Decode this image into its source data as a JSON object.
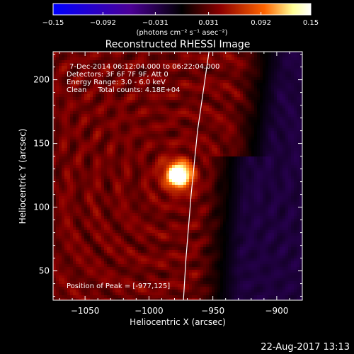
{
  "chart_data": {
    "type": "heatmap",
    "title": "Reconstructed RHESSI Image",
    "xlabel": "Heliocentric X (arcsec)",
    "ylabel": "Heliocentric Y (arcsec)",
    "xlim": [
      -1075,
      -880
    ],
    "ylim": [
      27,
      222
    ],
    "x_ticks": [
      -1050,
      -1000,
      -950,
      -900
    ],
    "y_ticks": [
      50,
      100,
      150,
      200
    ],
    "x_tick_labels": [
      "−1050",
      "−1000",
      "−950",
      "−900"
    ],
    "y_tick_labels": [
      "50",
      "100",
      "150",
      "200"
    ],
    "colorbar": {
      "min": -0.15,
      "max": 0.15,
      "ticks": [
        -0.15,
        -0.092,
        -0.031,
        0.031,
        0.092,
        0.15
      ],
      "tick_labels": [
        "−0.15",
        "−0.092",
        "−0.031",
        "0.031",
        "0.092",
        "0.15"
      ],
      "unit_label": "(photons cm⁻² s⁻¹ asec⁻²)",
      "colors": [
        "#0000ff",
        "#4b0096",
        "#000000",
        "#8c0000",
        "#ff6400",
        "#ffff96",
        "#ffffff"
      ]
    },
    "annotations": [
      "7-Dec-2014 06:12:04.000 to 06:22:04.000",
      "Detectors: 3F 6F 7F 9F, Att 0",
      "Energy Range: 3.0 - 6.0 keV",
      "Clean     Total counts: 4.18E+04"
    ],
    "peak_label": "Position of Peak = [-977,125]",
    "peak": {
      "x": -977,
      "y": 125,
      "value": 0.15
    },
    "limb": [
      [
        -953,
        222
      ],
      [
        -962,
        160
      ],
      [
        -967,
        110
      ],
      [
        -971,
        60
      ],
      [
        -973,
        27
      ]
    ],
    "background_level": 0.04,
    "negative_region_min": -0.03
  },
  "timestamp": "22-Aug-2017 13:13"
}
